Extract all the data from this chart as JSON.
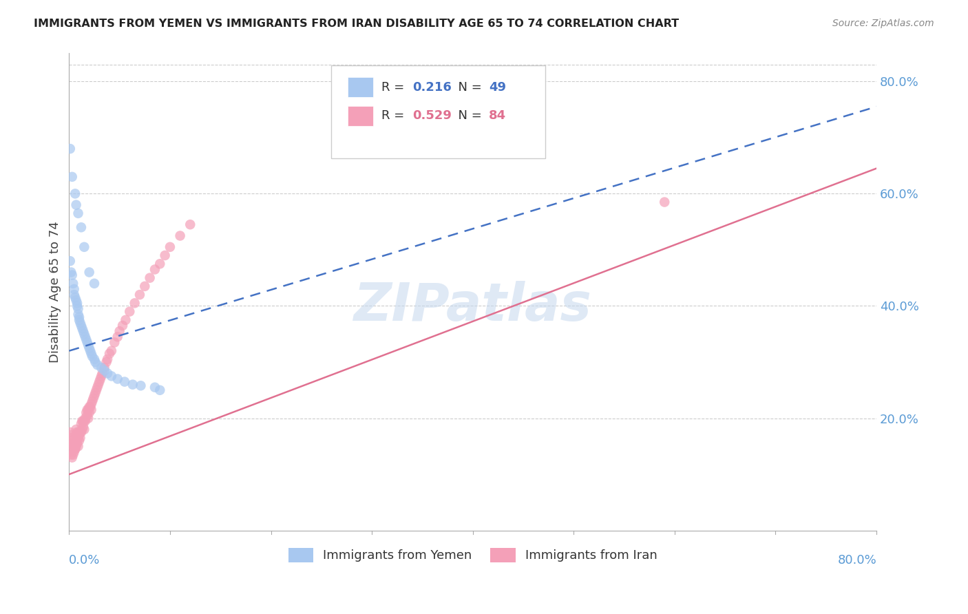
{
  "title": "IMMIGRANTS FROM YEMEN VS IMMIGRANTS FROM IRAN DISABILITY AGE 65 TO 74 CORRELATION CHART",
  "source": "Source: ZipAtlas.com",
  "ylabel": "Disability Age 65 to 74",
  "legend1_label": "Immigrants from Yemen",
  "legend2_label": "Immigrants from Iran",
  "R_yemen": 0.216,
  "N_yemen": 49,
  "R_iran": 0.529,
  "N_iran": 84,
  "color_yemen": "#A8C8F0",
  "color_iran": "#F4A0B8",
  "color_yemen_line": "#4472C4",
  "color_iran_line": "#E07090",
  "xlim": [
    0.0,
    0.8
  ],
  "ylim": [
    0.0,
    0.85
  ],
  "watermark": "ZIPatlas",
  "yemen_x": [
    0.001,
    0.002,
    0.003,
    0.004,
    0.005,
    0.005,
    0.006,
    0.007,
    0.008,
    0.008,
    0.009,
    0.009,
    0.01,
    0.01,
    0.011,
    0.012,
    0.013,
    0.014,
    0.015,
    0.016,
    0.017,
    0.018,
    0.019,
    0.02,
    0.021,
    0.022,
    0.023,
    0.025,
    0.026,
    0.028,
    0.032,
    0.035,
    0.038,
    0.042,
    0.048,
    0.055,
    0.063,
    0.071,
    0.085,
    0.09,
    0.001,
    0.003,
    0.006,
    0.007,
    0.009,
    0.012,
    0.015,
    0.02,
    0.025
  ],
  "yemen_y": [
    0.48,
    0.46,
    0.455,
    0.44,
    0.43,
    0.42,
    0.415,
    0.41,
    0.405,
    0.4,
    0.395,
    0.385,
    0.38,
    0.375,
    0.37,
    0.365,
    0.36,
    0.355,
    0.35,
    0.345,
    0.34,
    0.335,
    0.33,
    0.325,
    0.32,
    0.315,
    0.31,
    0.305,
    0.3,
    0.295,
    0.29,
    0.285,
    0.28,
    0.275,
    0.27,
    0.265,
    0.26,
    0.258,
    0.255,
    0.25,
    0.68,
    0.63,
    0.6,
    0.58,
    0.565,
    0.54,
    0.505,
    0.46,
    0.44
  ],
  "iran_x": [
    0.001,
    0.002,
    0.002,
    0.003,
    0.003,
    0.004,
    0.004,
    0.005,
    0.005,
    0.006,
    0.006,
    0.007,
    0.007,
    0.007,
    0.008,
    0.008,
    0.008,
    0.009,
    0.009,
    0.009,
    0.01,
    0.01,
    0.011,
    0.011,
    0.012,
    0.012,
    0.013,
    0.013,
    0.014,
    0.014,
    0.015,
    0.015,
    0.016,
    0.016,
    0.017,
    0.018,
    0.018,
    0.019,
    0.019,
    0.02,
    0.02,
    0.021,
    0.022,
    0.022,
    0.023,
    0.024,
    0.025,
    0.026,
    0.027,
    0.028,
    0.029,
    0.03,
    0.031,
    0.032,
    0.033,
    0.035,
    0.037,
    0.038,
    0.04,
    0.042,
    0.045,
    0.048,
    0.05,
    0.053,
    0.056,
    0.06,
    0.065,
    0.07,
    0.075,
    0.08,
    0.085,
    0.09,
    0.095,
    0.1,
    0.11,
    0.12,
    0.001,
    0.002,
    0.003,
    0.004,
    0.005,
    0.006,
    0.007,
    0.59
  ],
  "iran_y": [
    0.175,
    0.165,
    0.17,
    0.16,
    0.155,
    0.155,
    0.15,
    0.145,
    0.155,
    0.15,
    0.145,
    0.18,
    0.17,
    0.16,
    0.175,
    0.165,
    0.155,
    0.175,
    0.165,
    0.15,
    0.17,
    0.16,
    0.175,
    0.165,
    0.175,
    0.19,
    0.195,
    0.18,
    0.195,
    0.185,
    0.18,
    0.195,
    0.2,
    0.195,
    0.21,
    0.215,
    0.205,
    0.215,
    0.2,
    0.22,
    0.21,
    0.22,
    0.225,
    0.215,
    0.23,
    0.235,
    0.24,
    0.245,
    0.25,
    0.255,
    0.26,
    0.265,
    0.27,
    0.275,
    0.28,
    0.29,
    0.3,
    0.305,
    0.315,
    0.32,
    0.335,
    0.345,
    0.355,
    0.365,
    0.375,
    0.39,
    0.405,
    0.42,
    0.435,
    0.45,
    0.465,
    0.475,
    0.49,
    0.505,
    0.525,
    0.545,
    0.14,
    0.135,
    0.13,
    0.135,
    0.14,
    0.145,
    0.15,
    0.585
  ],
  "trendline_yemen_x0": 0.0,
  "trendline_yemen_y0": 0.32,
  "trendline_yemen_x1": 0.8,
  "trendline_yemen_y1": 0.755,
  "trendline_iran_x0": 0.0,
  "trendline_iran_y0": 0.1,
  "trendline_iran_x1": 0.8,
  "trendline_iran_y1": 0.645
}
